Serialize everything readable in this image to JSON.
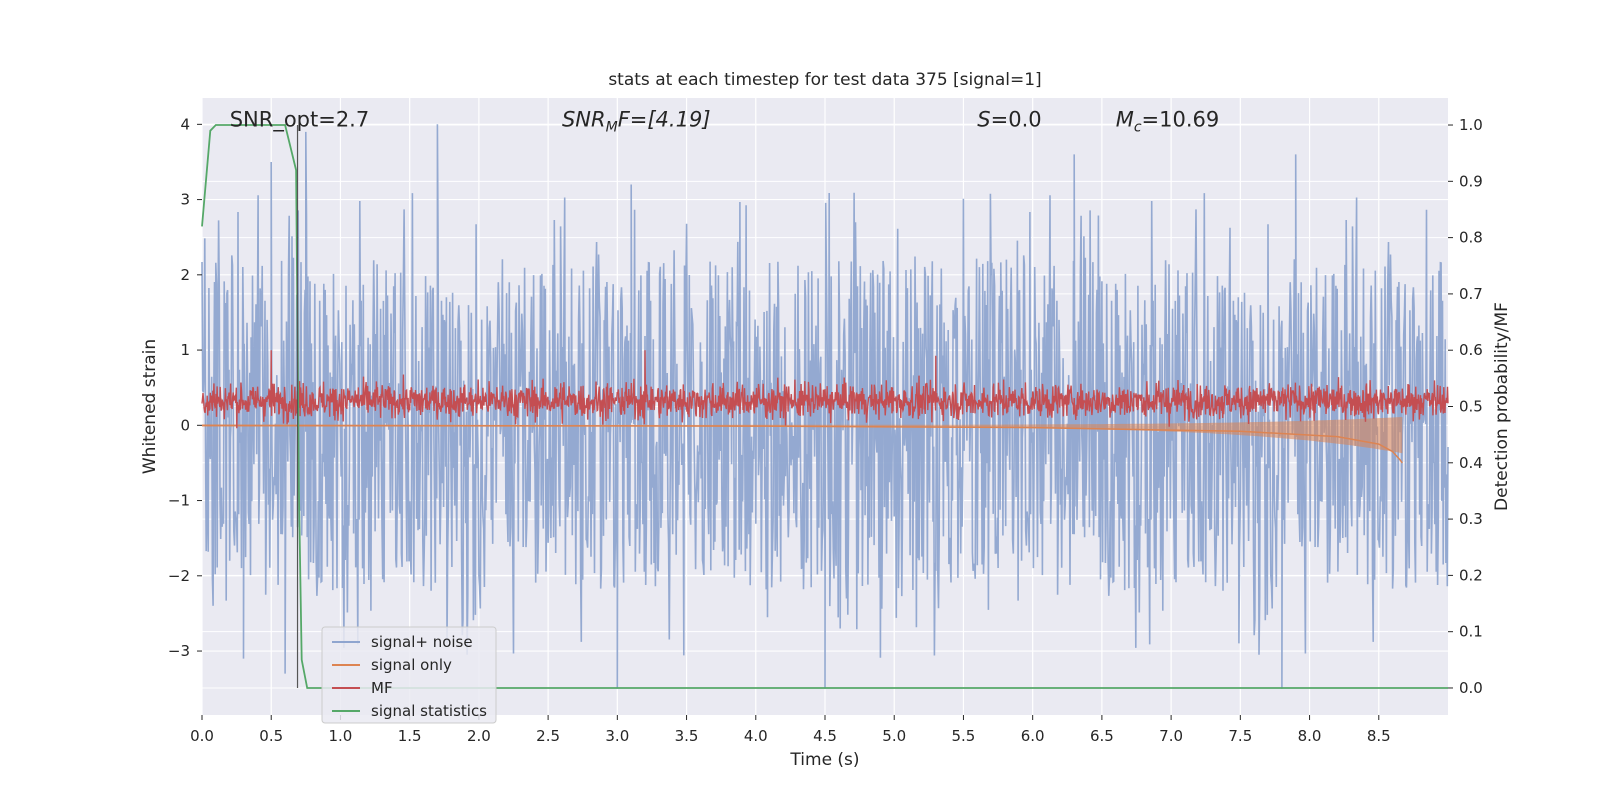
{
  "chart_data": {
    "type": "line",
    "title": "stats at each timestep for test data 375 [signal=1]",
    "xlabel": "Time (s)",
    "ylabel_left": "Whitened strain",
    "ylabel_right": "Detection probability/MF",
    "xlim": [
      0.0,
      9.0
    ],
    "ylim_left": [
      -3.85,
      4.35
    ],
    "ylim_right": [
      -0.048,
      1.048
    ],
    "x_ticks": [
      "0.0",
      "0.5",
      "1.0",
      "1.5",
      "2.0",
      "2.5",
      "3.0",
      "3.5",
      "4.0",
      "4.5",
      "5.0",
      "5.5",
      "6.0",
      "6.5",
      "7.0",
      "7.5",
      "8.0",
      "8.5"
    ],
    "y_ticks_left": [
      "4",
      "3",
      "2",
      "1",
      "0",
      "−1",
      "−2",
      "−3"
    ],
    "y_ticks_right": [
      "1.0",
      "0.9",
      "0.8",
      "0.7",
      "0.6",
      "0.5",
      "0.4",
      "0.3",
      "0.2",
      "0.1",
      "0.0"
    ],
    "grid": true,
    "legend_position": "lower-left",
    "annotations": {
      "snr_opt": "SNR_opt=2.7",
      "snr_mf_sym": "SNR",
      "snr_mf_sub": "M",
      "snr_mf_rest": "F=[4.19]",
      "s_sym": "S",
      "s_rest": "=0.0",
      "mc_sym": "M",
      "mc_sub": "c",
      "mc_rest": "=10.69"
    },
    "series": [
      {
        "name": "signal+ noise",
        "color": "#8fa5cf",
        "axis": "left",
        "envelope_high_approx": 2.0,
        "envelope_low_approx": -2.2,
        "peak_points": [
          [
            0.5,
            3.5
          ],
          [
            0.75,
            3.9
          ],
          [
            1.7,
            4.0
          ],
          [
            3.1,
            3.2
          ],
          [
            6.3,
            3.6
          ],
          [
            7.9,
            3.6
          ],
          [
            3.0,
            -3.5
          ],
          [
            4.5,
            -3.5
          ],
          [
            7.8,
            -3.5
          ],
          [
            0.3,
            -3.1
          ],
          [
            0.6,
            -3.3
          ]
        ]
      },
      {
        "name": "signal only",
        "color": "#dd8452",
        "axis": "left",
        "points": [
          [
            0.0,
            0.0
          ],
          [
            4.0,
            -0.01
          ],
          [
            6.0,
            -0.03
          ],
          [
            7.5,
            -0.08
          ],
          [
            8.2,
            -0.15
          ],
          [
            8.5,
            -0.25
          ],
          [
            8.6,
            -0.35
          ],
          [
            8.65,
            -0.45
          ],
          [
            8.67,
            -0.5
          ]
        ]
      },
      {
        "name": "MF",
        "color": "#c44e52",
        "axis": "right",
        "mean": 0.51,
        "band": [
          0.47,
          0.57
        ],
        "peak_points": [
          [
            0.5,
            0.6
          ],
          [
            3.2,
            0.6
          ],
          [
            5.3,
            0.59
          ]
        ]
      },
      {
        "name": "signal statistics",
        "color": "#55a868",
        "axis": "right",
        "points": [
          [
            0.0,
            0.82
          ],
          [
            0.06,
            0.99
          ],
          [
            0.1,
            1.0
          ],
          [
            0.6,
            1.0
          ],
          [
            0.68,
            0.92
          ],
          [
            0.7,
            0.35
          ],
          [
            0.72,
            0.05
          ],
          [
            0.76,
            0.0
          ],
          [
            9.0,
            0.0
          ]
        ]
      }
    ],
    "marker_line_x": 0.69
  }
}
